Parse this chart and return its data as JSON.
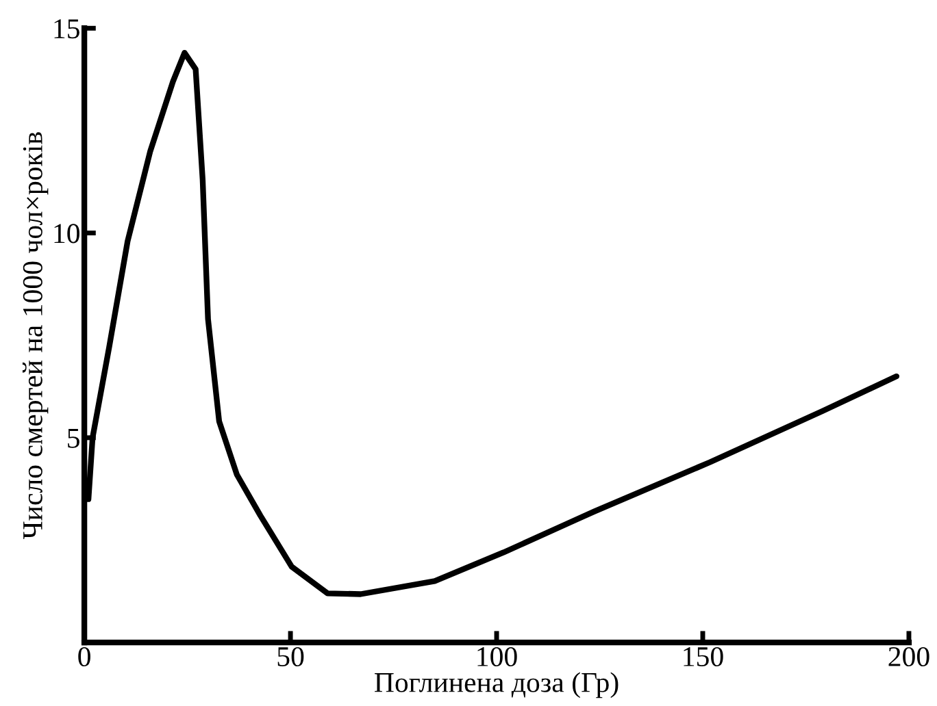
{
  "chart_data": {
    "type": "line",
    "xlabel": "Поглинена доза (Гр)",
    "ylabel": "Число смертей на 1000 чол×років",
    "x": [
      0,
      1,
      2,
      6,
      10.5,
      16,
      21.5,
      24.3,
      27,
      28.7,
      30,
      32.7,
      37,
      42.7,
      50.3,
      59,
      67,
      85,
      101.7,
      123.7,
      151.7,
      179,
      197
    ],
    "series": [
      {
        "color": "#000000",
        "values": [
          3.5,
          3.5,
          5.0,
          7.2,
          9.8,
          12.0,
          13.7,
          14.4,
          14.0,
          11.3,
          7.9,
          5.4,
          4.1,
          3.1,
          1.85,
          1.2,
          1.18,
          1.5,
          2.2,
          3.2,
          4.4,
          5.65,
          6.5
        ]
      }
    ],
    "xlim": [
      0,
      200
    ],
    "ylim": [
      0,
      15
    ],
    "xticks": [
      0,
      50,
      100,
      150,
      200
    ],
    "yticks": [
      5,
      10,
      15
    ],
    "grid": false,
    "line_style": "solid",
    "marker": "none"
  }
}
